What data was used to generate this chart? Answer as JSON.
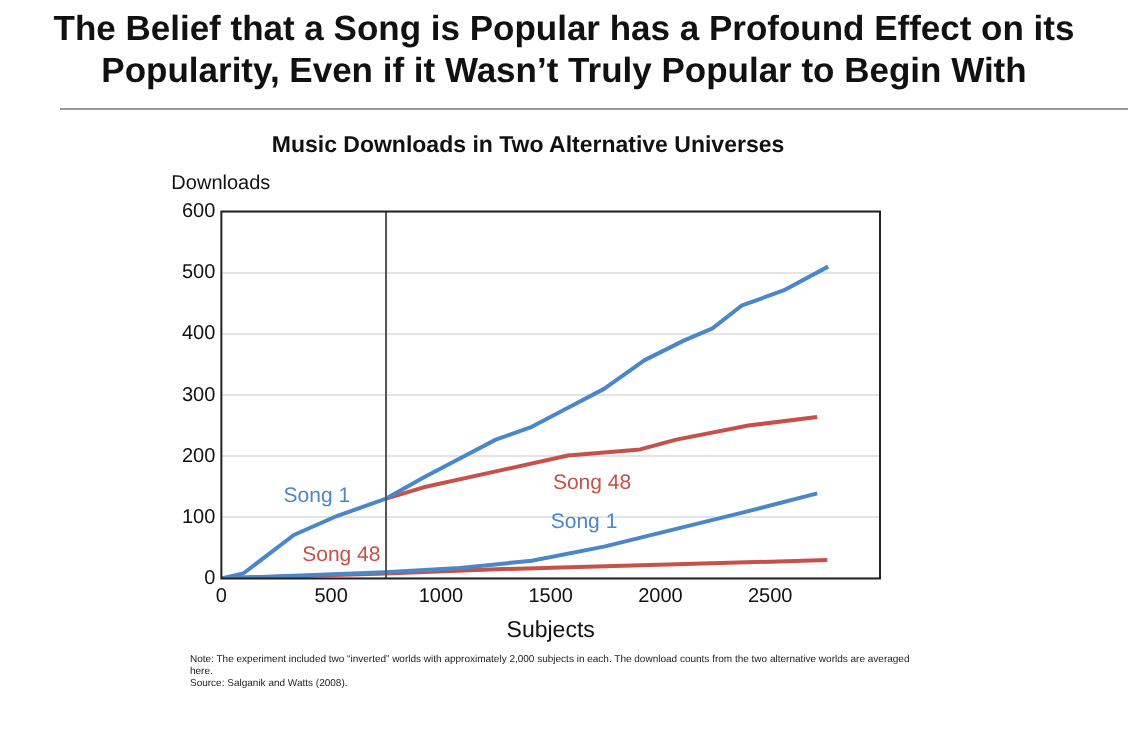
{
  "chart_data": {
    "type": "line",
    "title": "The Belief that a Song is Popular has a Profound Effect on its Popularity, Even if it Wasn’t Truly Popular to Begin With",
    "subtitle": "Music Downloads in Two Alternative Universes",
    "xlabel": "Subjects",
    "ylabel": "Downloads",
    "xlim": [
      0,
      3000
    ],
    "xticks": [
      0,
      500,
      1000,
      1500,
      2000,
      2500
    ],
    "ylim": [
      0,
      600
    ],
    "yticks": [
      0,
      100,
      200,
      300,
      400,
      500,
      600
    ],
    "grid": "y",
    "legend": false,
    "marker": "none",
    "line_style": "solid",
    "series": [
      {
        "name": "Song 1",
        "color": "#4a86c8",
        "x": [
          0,
          100,
          330,
          526,
          747,
          921,
          1086,
          1250,
          1414,
          1579,
          1743,
          1928,
          2106,
          2237,
          2369,
          2567,
          2764
        ],
        "values": [
          0,
          8,
          71,
          102,
          130,
          165,
          196,
          227,
          248,
          279,
          310,
          357,
          389,
          409,
          446,
          472,
          510
        ]
      },
      {
        "name": "Song 48",
        "color": "#c8504a",
        "x": [
          747,
          921,
          1250,
          1579,
          1908,
          2072,
          2401,
          2714
        ],
        "values": [
          130,
          149,
          175,
          201,
          211,
          227,
          250,
          264
        ]
      },
      {
        "name": "Song 1",
        "color": "#4a86c8",
        "x": [
          0,
          747,
          1086,
          1414,
          1743,
          2072,
          2401,
          2714
        ],
        "values": [
          0,
          10,
          17,
          29,
          52,
          81,
          110,
          139
        ]
      },
      {
        "name": "Song 48",
        "color": "#c8504a",
        "x": [
          0,
          747,
          1250,
          2072,
          2760
        ],
        "values": [
          0,
          8,
          15,
          23,
          30
        ]
      }
    ],
    "ref_lines": [
      {
        "axis": "x",
        "value": 750,
        "label": null,
        "color": "#555555"
      }
    ],
    "annotations": [
      "Note: The experiment included two “inverted” worlds with approximately 2,000 subjects in each. The download counts from the two alternative worlds are averaged here.",
      "Source: Salganik and Watts (2008)."
    ]
  }
}
